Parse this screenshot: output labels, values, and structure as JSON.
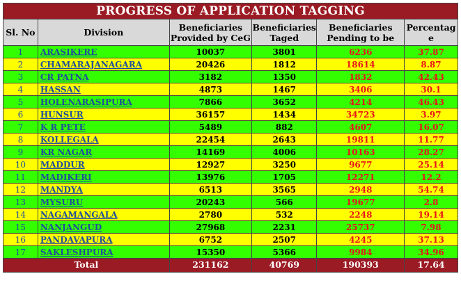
{
  "title": "PROGRESS OF APPLICATION TAGGING",
  "headers": {
    "sl": "Sl. No",
    "division": "Division",
    "provided": "Beneficiaries Provided by CeG",
    "taged": "Beneficiaries Taged",
    "pending": "Beneficiaries Pending to be",
    "percentage": "Percentag e"
  },
  "rows": [
    {
      "sl": "1",
      "division": "ARASIKERE",
      "provided": "10037",
      "taged": "3801",
      "pending": "6236",
      "pct": "37.87"
    },
    {
      "sl": "2",
      "division": "CHAMARAJANAGARA",
      "provided": "20426",
      "taged": "1812",
      "pending": "18614",
      "pct": "8.87"
    },
    {
      "sl": "3",
      "division": "CR PATNA",
      "provided": "3182",
      "taged": "1350",
      "pending": "1832",
      "pct": "42.43"
    },
    {
      "sl": "4",
      "division": "HASSAN",
      "provided": "4873",
      "taged": "1467",
      "pending": "3406",
      "pct": "30.1"
    },
    {
      "sl": "5",
      "division": "HOLENARASIPURA",
      "provided": "7866",
      "taged": "3652",
      "pending": "4214",
      "pct": "46.43"
    },
    {
      "sl": "6",
      "division": "HUNSUR",
      "provided": "36157",
      "taged": "1434",
      "pending": "34723",
      "pct": "3.97"
    },
    {
      "sl": "7",
      "division": "K R PETE",
      "provided": "5489",
      "taged": "882",
      "pending": "4607",
      "pct": "16.07"
    },
    {
      "sl": "8",
      "division": "KOLLEGALA",
      "provided": "22454",
      "taged": "2643",
      "pending": "19811",
      "pct": "11.77"
    },
    {
      "sl": "9",
      "division": "KR NAGAR",
      "provided": "14169",
      "taged": "4006",
      "pending": "10163",
      "pct": "28.27"
    },
    {
      "sl": "10",
      "division": "MADDUR",
      "provided": "12927",
      "taged": "3250",
      "pending": "9677",
      "pct": "25.14"
    },
    {
      "sl": "11",
      "division": "MADIKERI",
      "provided": "13976",
      "taged": "1705",
      "pending": "12271",
      "pct": "12.2"
    },
    {
      "sl": "12",
      "division": "MANDYA",
      "provided": "6513",
      "taged": "3565",
      "pending": "2948",
      "pct": "54.74"
    },
    {
      "sl": "13",
      "division": "MYSURU",
      "provided": "20243",
      "taged": "566",
      "pending": "19677",
      "pct": "2.8"
    },
    {
      "sl": "14",
      "division": "NAGAMANGALA",
      "provided": "2780",
      "taged": "532",
      "pending": "2248",
      "pct": "19.14"
    },
    {
      "sl": "15",
      "division": "NANJANGUD",
      "provided": "27968",
      "taged": "2231",
      "pending": "25737",
      "pct": "7.98"
    },
    {
      "sl": "16",
      "division": "PANDAVAPURA",
      "provided": "6752",
      "taged": "2507",
      "pending": "4245",
      "pct": "37.13"
    },
    {
      "sl": "17",
      "division": "SAKLESHPURA",
      "provided": "15350",
      "taged": "5366",
      "pending": "9984",
      "pct": "34.96"
    }
  ],
  "total": {
    "label": "Total",
    "provided": "231162",
    "taged": "40769",
    "pending": "190393",
    "pct": "17.64"
  },
  "colors": {
    "title_bg": "#9b1b24",
    "header_bg": "#d9d9d9",
    "row_green": "#33ff00",
    "row_yellow": "#ffff00",
    "link_blue": "#1f4e9b",
    "value_red": "#e8141a"
  }
}
